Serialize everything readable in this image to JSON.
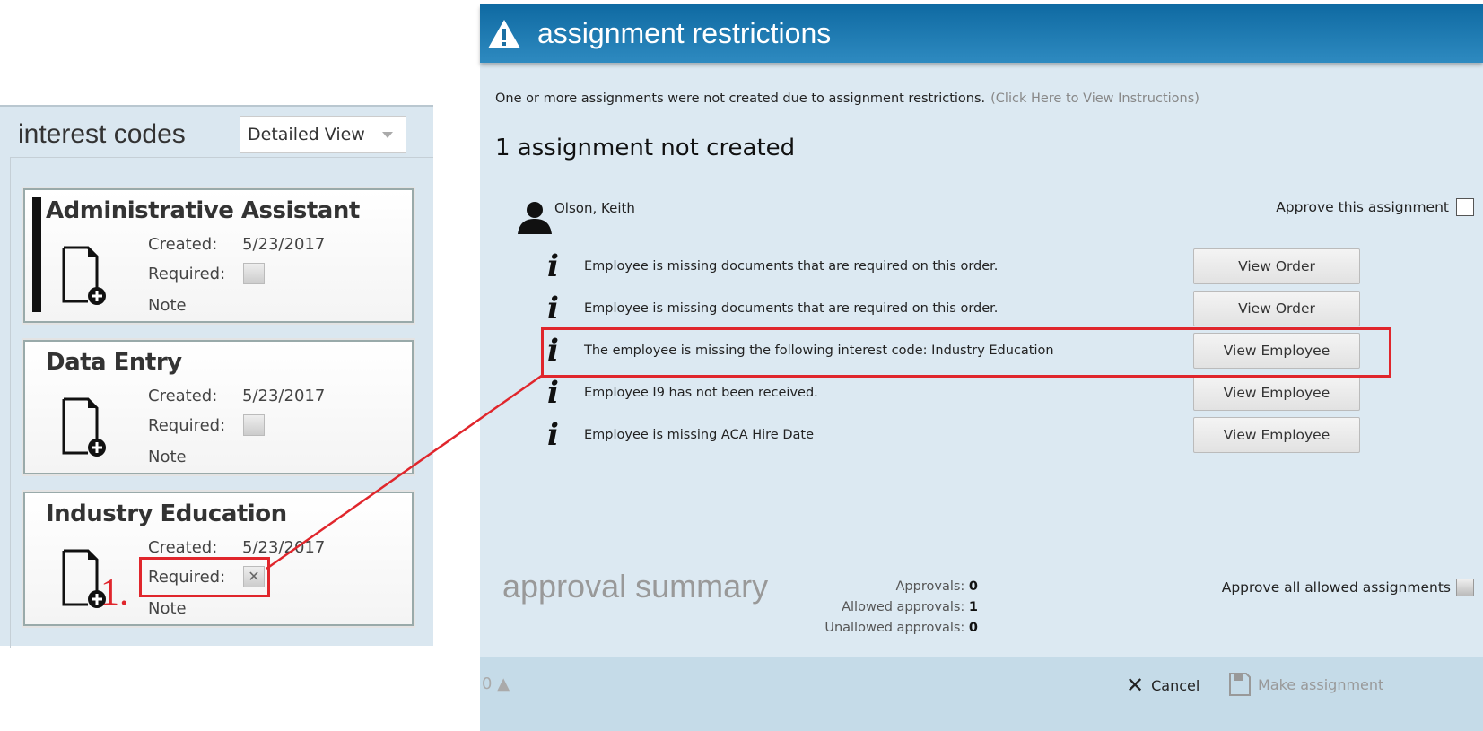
{
  "interest_codes": {
    "title": "interest codes",
    "view_select": "Detailed View",
    "cards": [
      {
        "title": "Administrative Assistant",
        "created_label": "Created:",
        "created": "5/23/2017",
        "required_label": "Required:",
        "required": false,
        "note": "Note",
        "selected": true
      },
      {
        "title": "Data Entry",
        "created_label": "Created:",
        "created": "5/23/2017",
        "required_label": "Required:",
        "required": false,
        "note": "Note",
        "selected": false
      },
      {
        "title": "Industry Education",
        "created_label": "Created:",
        "created": "5/23/2017",
        "required_label": "Required:",
        "required": true,
        "note": "Note",
        "selected": false
      }
    ],
    "annotation_number": "1."
  },
  "dialog": {
    "title": "assignment restrictions",
    "message": "One or more assignments were not created due to assignment restrictions.",
    "instructions_link": "(Click Here to View Instructions)",
    "count_heading": "1 assignment not created",
    "employee": "Olson, Keith",
    "approve_label": "Approve this assignment",
    "restrictions": [
      {
        "text": "Employee is missing documents that are required on this order.",
        "button": "View Order"
      },
      {
        "text": "Employee is missing documents that are required on this order.",
        "button": "View Order"
      },
      {
        "text": "The employee is missing the following interest code: Industry Education",
        "button": "View Employee"
      },
      {
        "text": "Employee I9 has not been received.",
        "button": "View Employee"
      },
      {
        "text": "Employee is missing ACA Hire Date",
        "button": "View Employee"
      }
    ],
    "summary": {
      "title": "approval summary",
      "approvals_label": "Approvals:",
      "approvals": "0",
      "allowed_label": "Allowed approvals:",
      "allowed": "1",
      "unallowed_label": "Unallowed approvals:",
      "unallowed": "0",
      "approve_all_label": "Approve all allowed assignments"
    },
    "footer": {
      "warning_count": "0",
      "cancel": "Cancel",
      "make": "Make assignment"
    }
  },
  "colors": {
    "header": "#1a74aa",
    "highlight": "#e0262c",
    "panel": "#dce9f2"
  }
}
